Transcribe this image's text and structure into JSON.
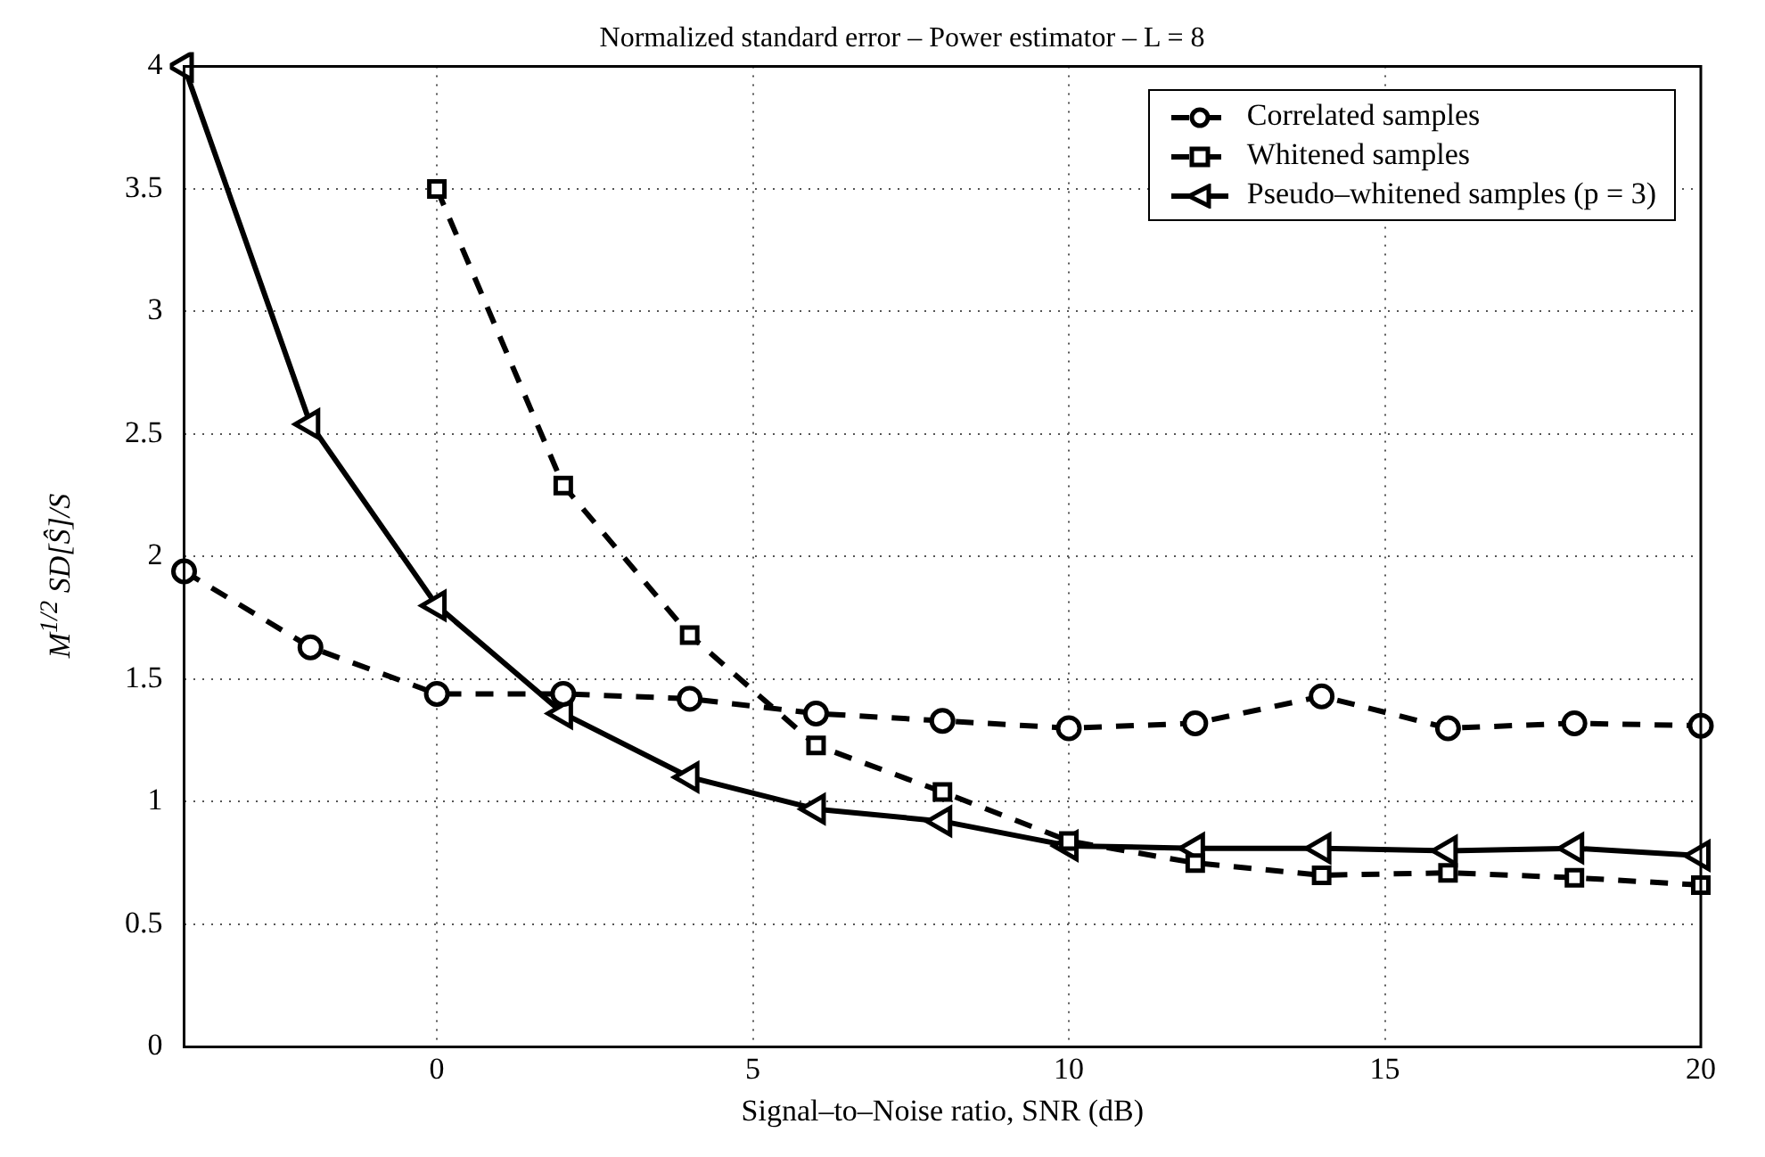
{
  "chart_data": {
    "type": "line",
    "title": "Normalized standard error – Power estimator – L = 8",
    "xlabel": "Signal–to–Noise ratio, SNR (dB)",
    "ylabel": "M$^{1/2}$ SD[Ŝ]/S",
    "x": [
      -4,
      -2,
      0,
      2,
      4,
      6,
      8,
      10,
      12,
      14,
      16,
      18,
      20
    ],
    "series": [
      {
        "name": "Correlated samples",
        "color": "#000000",
        "marker": "circle",
        "line_style": "dashed",
        "values": [
          1.94,
          1.63,
          1.44,
          1.44,
          1.42,
          1.36,
          1.33,
          1.3,
          1.32,
          1.43,
          1.3,
          1.32,
          1.31
        ]
      },
      {
        "name": "Whitened samples",
        "color": "#000000",
        "marker": "square",
        "line_style": "dashed",
        "values": [
          null,
          null,
          3.5,
          2.29,
          1.68,
          1.23,
          1.04,
          0.84,
          0.75,
          0.7,
          0.71,
          0.69,
          0.66
        ]
      },
      {
        "name": "Pseudo–whitened samples (p = 3)",
        "color": "#000000",
        "marker": "triangle",
        "line_style": "solid",
        "values": [
          4.0,
          2.54,
          1.8,
          1.36,
          1.1,
          0.97,
          0.92,
          0.82,
          0.81,
          0.81,
          0.8,
          0.81,
          0.78
        ]
      }
    ],
    "xlim": [
      -4,
      20
    ],
    "xticks": [
      0,
      5,
      10,
      15,
      20
    ],
    "ylim": [
      0,
      4
    ],
    "yticks": [
      0,
      0.5,
      1,
      1.5,
      2,
      2.5,
      3,
      3.5,
      4
    ],
    "grid": true,
    "legend": "top right"
  }
}
